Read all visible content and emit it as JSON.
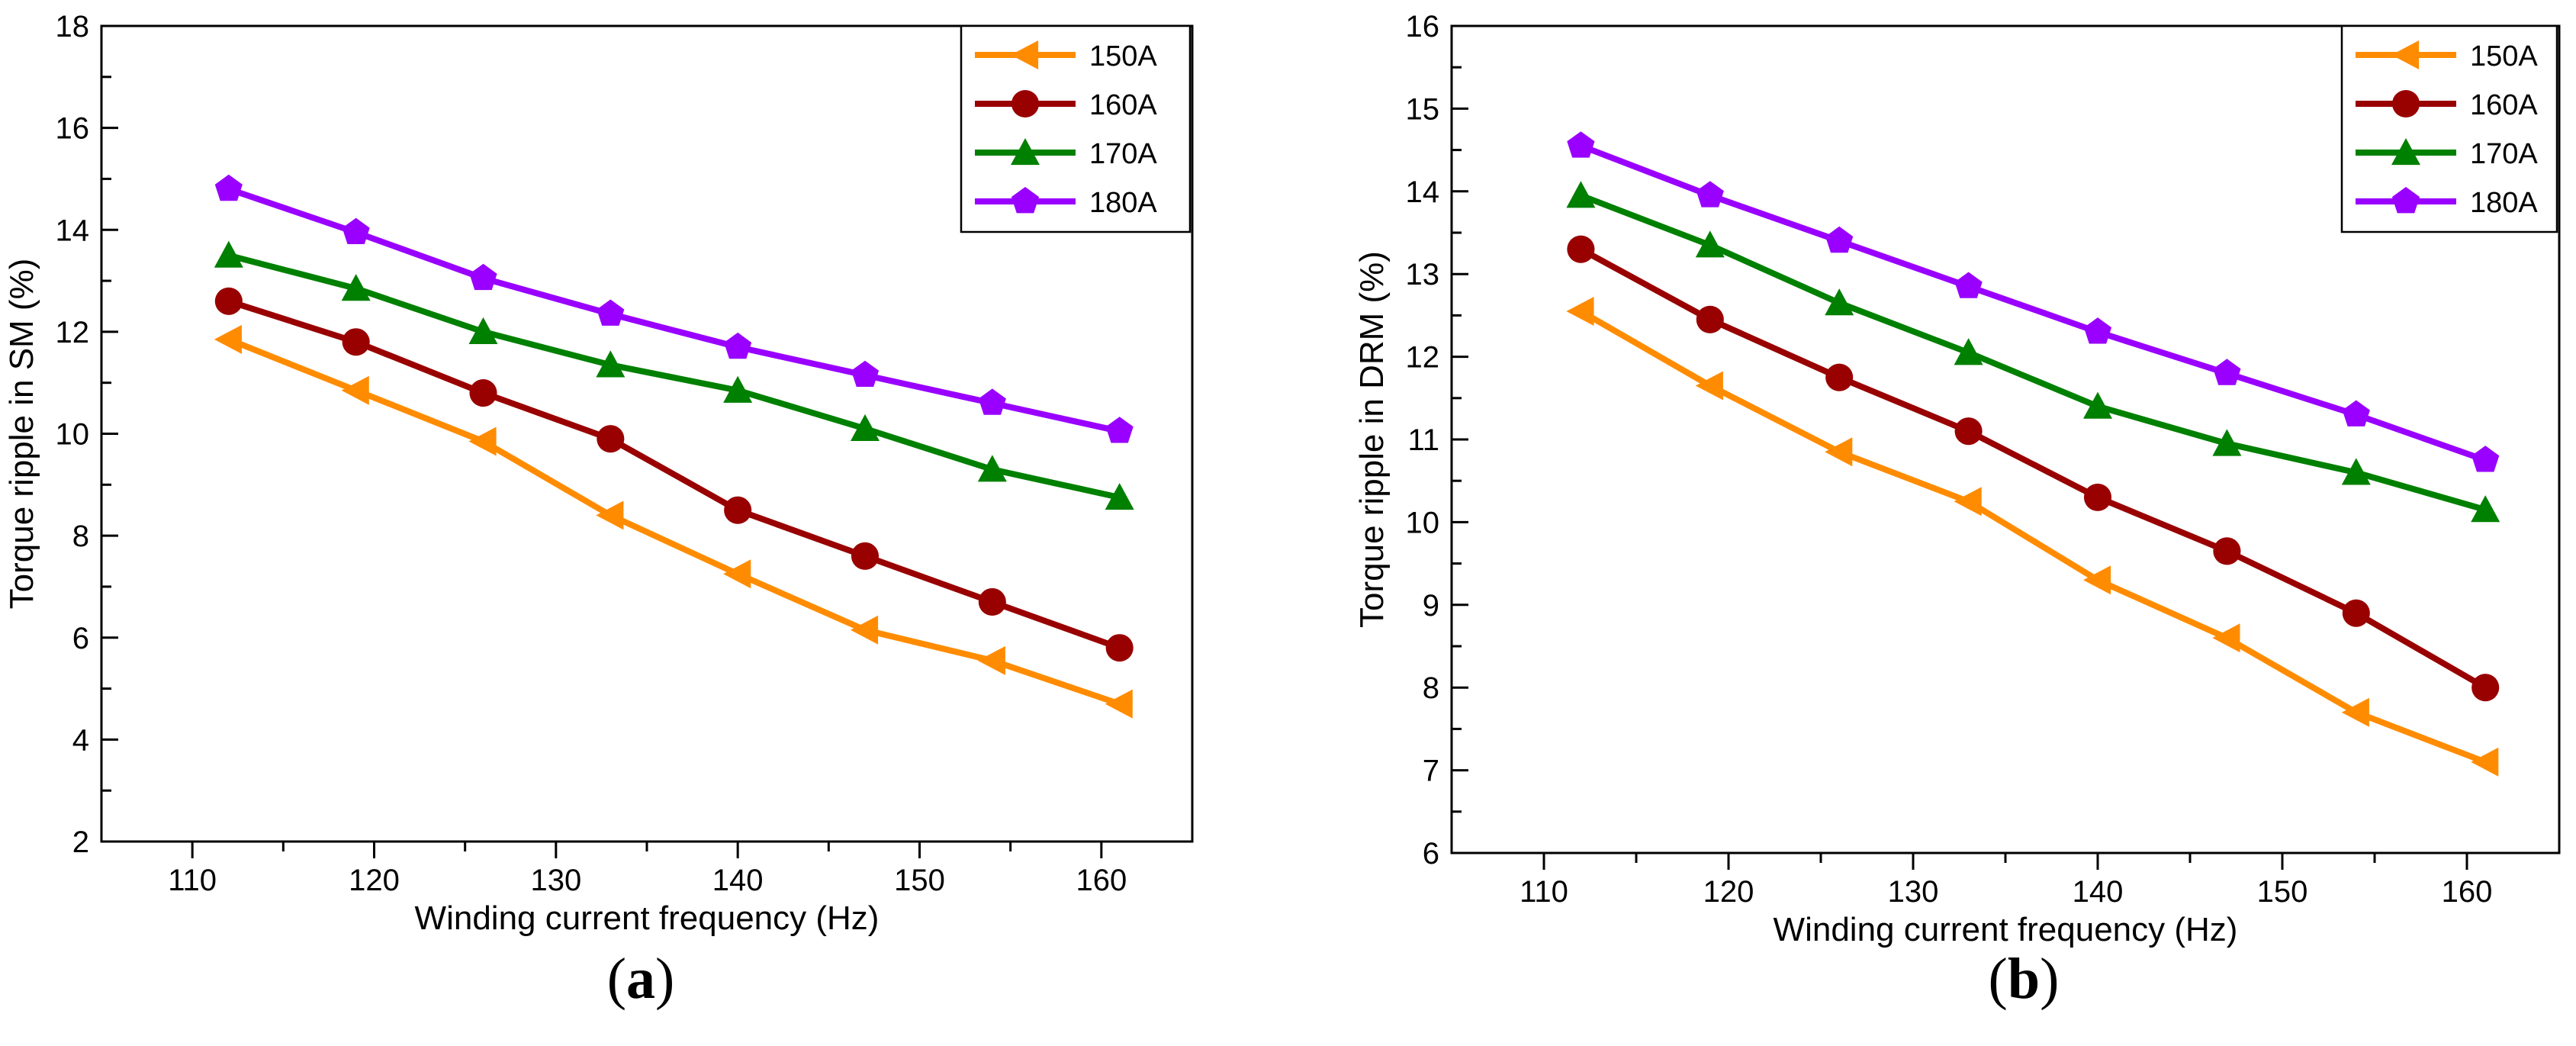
{
  "chart_data": [
    {
      "type": "line",
      "panel_label": "a",
      "xlabel": "Winding current frequency (Hz)",
      "ylabel": "Torque ripple in  SM (%)",
      "xlim": [
        105,
        165
      ],
      "ylim": [
        2,
        18
      ],
      "xticks": [
        110,
        120,
        130,
        140,
        150,
        160
      ],
      "yticks": [
        2,
        4,
        6,
        8,
        10,
        12,
        14,
        16,
        18
      ],
      "x": [
        112,
        119,
        126,
        133,
        140,
        147,
        154,
        161
      ],
      "legend_position": "top-right",
      "series": [
        {
          "name": "150A",
          "color": "#FF8C00",
          "marker": "triangle-left",
          "values": [
            11.85,
            10.85,
            9.85,
            8.4,
            7.25,
            6.15,
            5.55,
            4.7
          ]
        },
        {
          "name": "160A",
          "color": "#990000",
          "marker": "circle",
          "values": [
            12.6,
            11.8,
            10.8,
            9.9,
            8.5,
            7.6,
            6.7,
            5.8
          ]
        },
        {
          "name": "170A",
          "color": "#008000",
          "marker": "triangle-up",
          "values": [
            13.5,
            12.85,
            12.0,
            11.35,
            10.85,
            10.1,
            9.3,
            8.75
          ]
        },
        {
          "name": "180A",
          "color": "#9900FF",
          "marker": "pentagon",
          "values": [
            14.8,
            13.95,
            13.05,
            12.35,
            11.7,
            11.15,
            10.6,
            10.05
          ]
        }
      ]
    },
    {
      "type": "line",
      "panel_label": "b",
      "xlabel": "Winding current frequency (Hz)",
      "ylabel": "Torque ripple in  DRM (%)",
      "xlim": [
        105,
        165
      ],
      "ylim": [
        6,
        16
      ],
      "xticks": [
        110,
        120,
        130,
        140,
        150,
        160
      ],
      "yticks": [
        6,
        7,
        8,
        9,
        10,
        11,
        12,
        13,
        14,
        15,
        16
      ],
      "x": [
        112,
        119,
        126,
        133,
        140,
        147,
        154,
        161
      ],
      "legend_position": "top-right",
      "series": [
        {
          "name": "150A",
          "color": "#FF8C00",
          "marker": "triangle-left",
          "values": [
            12.55,
            11.65,
            10.85,
            10.25,
            9.3,
            8.6,
            7.7,
            7.1
          ]
        },
        {
          "name": "160A",
          "color": "#990000",
          "marker": "circle",
          "values": [
            13.3,
            12.45,
            11.75,
            11.1,
            10.3,
            9.65,
            8.9,
            8.0
          ]
        },
        {
          "name": "170A",
          "color": "#008000",
          "marker": "triangle-up",
          "values": [
            13.95,
            13.35,
            12.65,
            12.05,
            11.4,
            10.95,
            10.6,
            10.15
          ]
        },
        {
          "name": "180A",
          "color": "#9900FF",
          "marker": "pentagon",
          "values": [
            14.55,
            13.95,
            13.4,
            12.85,
            12.3,
            11.8,
            11.3,
            10.75
          ]
        }
      ]
    }
  ],
  "captions": {
    "a": {
      "open": "(",
      "label": "a",
      "close": ")"
    },
    "b": {
      "open": "(",
      "label": "b",
      "close": ")"
    }
  }
}
